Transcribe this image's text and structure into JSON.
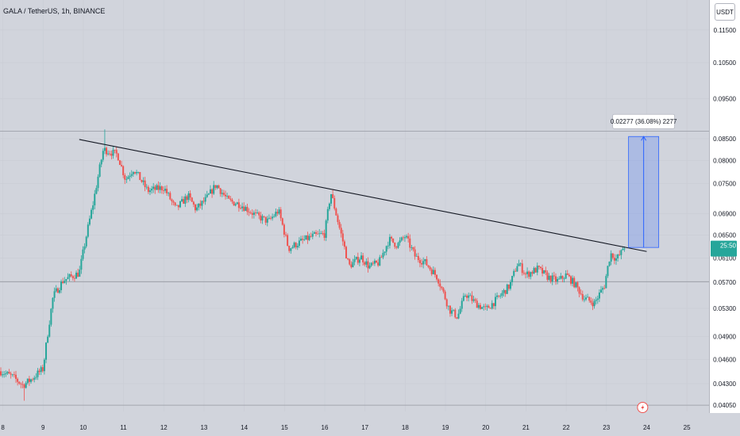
{
  "header": {
    "symbol_title": "GALA / TetherUS, 1h, BINANCE",
    "currency": "USDT"
  },
  "price_axis": {
    "ticks": [
      "0.11500",
      "0.10500",
      "0.09500",
      "0.08500",
      "0.08000",
      "0.07500",
      "0.06900",
      "0.06500",
      "0.06100",
      "0.05700",
      "0.05300",
      "0.04900",
      "0.04600",
      "0.04300",
      "0.04050"
    ]
  },
  "last_price": {
    "countdown": "25:50"
  },
  "measurement": {
    "label": "0.02277 (36.08%) 2277",
    "color": "#2962ff"
  },
  "bottom": {
    "icon": "lightning-icon"
  },
  "colors": {
    "up": "#26a69a",
    "down": "#ef5350",
    "background": "#d1d4dc",
    "line": "#131722"
  },
  "chart_data": {
    "type": "candlestick",
    "title": "GALA / TetherUS, 1h, BINANCE",
    "x_ticks": [
      "8",
      "9",
      "10",
      "11",
      "12",
      "13",
      "14",
      "15",
      "16",
      "17",
      "18",
      "19",
      "20",
      "21",
      "22",
      "23",
      "24",
      "25"
    ],
    "y_ticks": [
      0.115,
      0.105,
      0.095,
      0.085,
      0.08,
      0.075,
      0.069,
      0.065,
      0.061,
      0.057,
      0.053,
      0.049,
      0.046,
      0.043,
      0.0405
    ],
    "y_scale": "log",
    "ylim": [
      0.0398,
      0.125
    ],
    "xlim": [
      7.93,
      25.55
    ],
    "series_keypoints": [
      [
        7.95,
        0.0445
      ],
      [
        8.25,
        0.0438
      ],
      [
        8.5,
        0.0428
      ],
      [
        8.7,
        0.0435
      ],
      [
        9.0,
        0.0448
      ],
      [
        9.25,
        0.0548
      ],
      [
        9.5,
        0.0573
      ],
      [
        9.9,
        0.0585
      ],
      [
        10.25,
        0.0712
      ],
      [
        10.5,
        0.0825
      ],
      [
        10.85,
        0.0813
      ],
      [
        11.05,
        0.0758
      ],
      [
        11.25,
        0.0782
      ],
      [
        11.6,
        0.0735
      ],
      [
        12.0,
        0.0742
      ],
      [
        12.3,
        0.0698
      ],
      [
        12.6,
        0.0725
      ],
      [
        12.8,
        0.0698
      ],
      [
        13.05,
        0.0718
      ],
      [
        13.3,
        0.0748
      ],
      [
        13.6,
        0.0715
      ],
      [
        13.9,
        0.0708
      ],
      [
        14.3,
        0.0686
      ],
      [
        14.6,
        0.0675
      ],
      [
        14.85,
        0.0696
      ],
      [
        15.1,
        0.0626
      ],
      [
        15.4,
        0.0638
      ],
      [
        15.7,
        0.0648
      ],
      [
        16.0,
        0.0652
      ],
      [
        16.15,
        0.0732
      ],
      [
        16.35,
        0.0668
      ],
      [
        16.6,
        0.0596
      ],
      [
        16.9,
        0.0612
      ],
      [
        17.1,
        0.0595
      ],
      [
        17.35,
        0.0602
      ],
      [
        17.6,
        0.0642
      ],
      [
        17.8,
        0.0632
      ],
      [
        18.0,
        0.0648
      ],
      [
        18.25,
        0.0612
      ],
      [
        18.5,
        0.0602
      ],
      [
        18.8,
        0.0578
      ],
      [
        19.1,
        0.0528
      ],
      [
        19.3,
        0.0518
      ],
      [
        19.5,
        0.0552
      ],
      [
        19.75,
        0.0538
      ],
      [
        20.0,
        0.0528
      ],
      [
        20.3,
        0.0545
      ],
      [
        20.6,
        0.0565
      ],
      [
        20.8,
        0.0602
      ],
      [
        21.0,
        0.0582
      ],
      [
        21.3,
        0.0592
      ],
      [
        21.55,
        0.0578
      ],
      [
        21.8,
        0.0572
      ],
      [
        22.0,
        0.0582
      ],
      [
        22.2,
        0.0568
      ],
      [
        22.45,
        0.0545
      ],
      [
        22.7,
        0.0538
      ],
      [
        22.95,
        0.0565
      ],
      [
        23.1,
        0.0618
      ],
      [
        23.25,
        0.0608
      ],
      [
        23.45,
        0.0626
      ]
    ],
    "spikes": [
      {
        "x": 10.55,
        "high": 0.0872
      },
      {
        "x": 16.2,
        "high": 0.0738
      },
      {
        "x": 8.55,
        "low": 0.041
      }
    ],
    "horizontal_levels": [
      0.0868,
      0.0571,
      0.0405
    ],
    "trendline": {
      "from": [
        9.9,
        0.0848
      ],
      "to": [
        24.0,
        0.0621
      ]
    },
    "price_range": {
      "x_start": 23.55,
      "x_end": 24.3,
      "y_from": 0.0628,
      "y_to": 0.0855
    },
    "last_price": 0.0626
  }
}
